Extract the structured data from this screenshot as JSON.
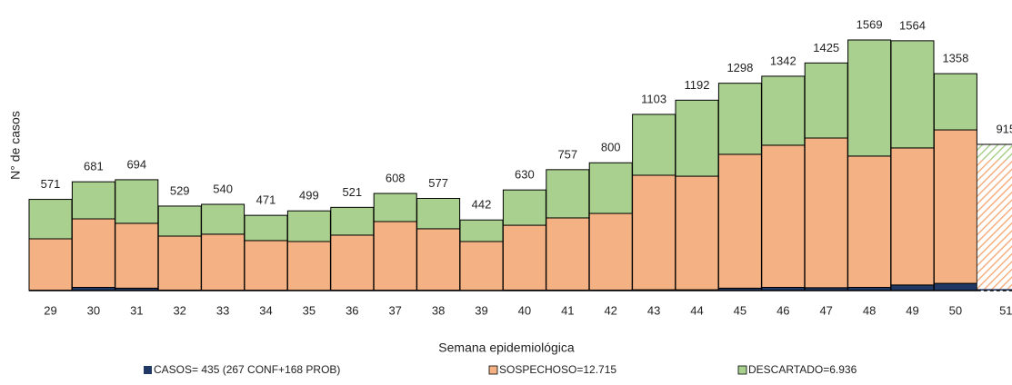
{
  "chart_data": {
    "type": "stacked-bar",
    "y_axis_label": "N° de casos",
    "x_axis_label": "Semana epidemiológica",
    "categories": [
      "29",
      "30",
      "31",
      "32",
      "33",
      "34",
      "35",
      "36",
      "37",
      "38",
      "39",
      "40",
      "41",
      "42",
      "43",
      "44",
      "45",
      "46",
      "47",
      "48",
      "49",
      "50",
      "51"
    ],
    "totals": [
      571,
      681,
      694,
      529,
      540,
      471,
      499,
      521,
      608,
      577,
      442,
      630,
      757,
      800,
      1103,
      1192,
      1298,
      1342,
      1425,
      1569,
      1564,
      1358,
      915
    ],
    "series": [
      {
        "name": "CASOS= 435 (267 CONF+168 PROB)",
        "color": "#1f3864",
        "values": [
          2,
          20,
          15,
          3,
          2,
          2,
          1,
          2,
          2,
          2,
          1,
          3,
          3,
          3,
          5,
          5,
          15,
          20,
          18,
          20,
          35,
          45,
          10
        ]
      },
      {
        "name": "SOSPECHOSO=12.715",
        "color": "#f4b183",
        "values": [
          322,
          429,
          406,
          338,
          351,
          311,
          306,
          345,
          430,
          385,
          306,
          406,
          452,
          480,
          717,
          711,
          838,
          890,
          937,
          822,
          858,
          961,
          809
        ]
      },
      {
        "name": "DESCARTADO=6.936",
        "color": "#a9d08e",
        "values": [
          247,
          232,
          273,
          188,
          187,
          158,
          192,
          174,
          176,
          190,
          135,
          221,
          302,
          317,
          381,
          476,
          445,
          432,
          470,
          727,
          671,
          352,
          96
        ]
      }
    ],
    "hatched_last": true,
    "legend": "bottom"
  }
}
